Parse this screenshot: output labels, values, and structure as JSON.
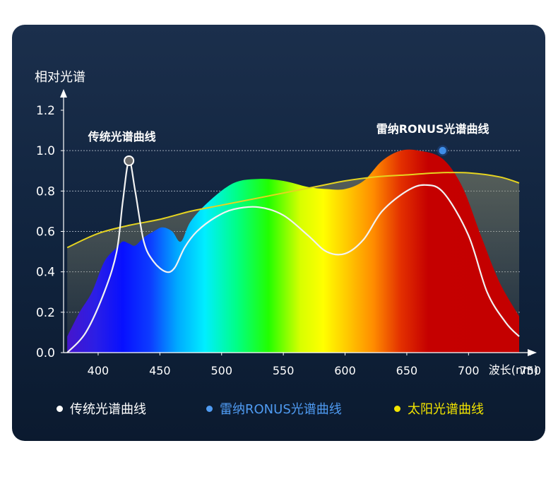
{
  "chart_data": {
    "type": "area",
    "ylabel": "相对光谱",
    "xlabel": "波长(nm)",
    "xlim": [
      372,
      741
    ],
    "ylim": [
      0,
      1.2
    ],
    "x_ticks": [
      400,
      450,
      500,
      550,
      600,
      650,
      700,
      750
    ],
    "y_ticks": [
      "0.0",
      "0.2",
      "0.4",
      "0.6",
      "0.8",
      "1.0",
      "1.2"
    ],
    "grid": "dotted-horizontal",
    "annotations": [
      {
        "text": "传统光谱曲线",
        "x": 425,
        "y": 0.95
      },
      {
        "text": "雷纳RONUS光谱曲线",
        "x": 679,
        "y": 1.0
      }
    ],
    "series": [
      {
        "name": "传统光谱曲线",
        "color": "#ffffff",
        "x": [
          375,
          390,
          405,
          415,
          420,
          425,
          430,
          437,
          445,
          455,
          462,
          470,
          480,
          495,
          510,
          530,
          550,
          570,
          585,
          600,
          615,
          630,
          650,
          665,
          680,
          700,
          715,
          730,
          741
        ],
        "y": [
          0.0,
          0.1,
          0.3,
          0.5,
          0.75,
          0.95,
          0.8,
          0.55,
          0.45,
          0.4,
          0.42,
          0.52,
          0.6,
          0.67,
          0.71,
          0.72,
          0.68,
          0.58,
          0.5,
          0.49,
          0.56,
          0.7,
          0.8,
          0.83,
          0.79,
          0.58,
          0.3,
          0.15,
          0.08
        ]
      },
      {
        "name": "雷纳RONUS光谱曲线",
        "color": "#4f9bf2",
        "x": [
          375,
          385,
          395,
          405,
          415,
          420,
          425,
          430,
          437,
          445,
          452,
          460,
          467,
          475,
          490,
          510,
          530,
          550,
          570,
          585,
          600,
          615,
          630,
          645,
          660,
          679,
          695,
          710,
          725,
          741
        ],
        "y": [
          0.08,
          0.2,
          0.3,
          0.45,
          0.52,
          0.55,
          0.54,
          0.53,
          0.57,
          0.6,
          0.62,
          0.6,
          0.55,
          0.65,
          0.75,
          0.84,
          0.86,
          0.85,
          0.82,
          0.81,
          0.81,
          0.85,
          0.95,
          1.0,
          1.0,
          0.96,
          0.82,
          0.58,
          0.35,
          0.18
        ]
      },
      {
        "name": "太阳光谱曲线",
        "color": "#e6d420",
        "x": [
          375,
          400,
          425,
          450,
          475,
          500,
          525,
          550,
          575,
          600,
          625,
          650,
          675,
          700,
          725,
          741
        ],
        "y": [
          0.52,
          0.59,
          0.63,
          0.66,
          0.7,
          0.73,
          0.76,
          0.79,
          0.82,
          0.85,
          0.87,
          0.88,
          0.89,
          0.89,
          0.87,
          0.84
        ]
      }
    ],
    "legend": {
      "position": "bottom"
    }
  }
}
